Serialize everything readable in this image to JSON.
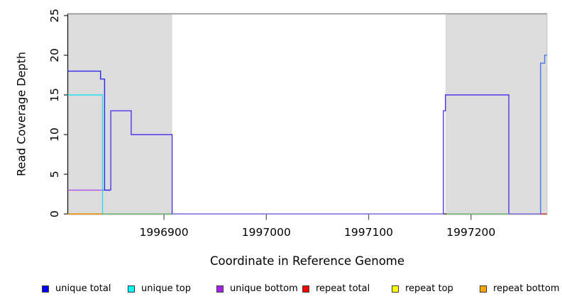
{
  "chart_data": {
    "type": "line",
    "subtype": "step-coverage",
    "title": "",
    "xlabel": "Coordinate in Reference Genome",
    "ylabel": "Read Coverage Depth",
    "xlim": [
      1996806,
      1997274
    ],
    "ylim": [
      0,
      25
    ],
    "x_ticks": [
      1996900,
      1997000,
      1997100,
      1997200
    ],
    "y_ticks": [
      0,
      5,
      10,
      15,
      20,
      25
    ],
    "grid": false,
    "legend_position": "bottom",
    "colors": {
      "background_shade": "#dcdcdc",
      "axis": "#1a1a1a",
      "top_border": "#8c8c8c",
      "unique_total": "#0000ff",
      "unique_top": "#00ffff",
      "unique_bottom": "#a020f0",
      "repeat_total": "#ff0000",
      "repeat_top": "#ffff00",
      "repeat_bottom": "#ffa500"
    },
    "shaded_regions": [
      {
        "x0": 1996806,
        "x1": 1996908
      },
      {
        "x0": 1997175,
        "x1": 1997274
      }
    ],
    "series": [
      {
        "name": "zero-line-middle",
        "color": "#8f7cf0",
        "points": [
          [
            1996908,
            0
          ],
          [
            1997173,
            0
          ]
        ]
      },
      {
        "name": "zero-line-right-gap",
        "color": "#8f7cf0",
        "points": [
          [
            1997237,
            0
          ],
          [
            1997268,
            0
          ]
        ]
      },
      {
        "name": "zero-line-green-left",
        "color": "#7fc87f",
        "points": [
          [
            1996840,
            0
          ],
          [
            1996908,
            0
          ]
        ]
      },
      {
        "name": "zero-line-green-right",
        "color": "#7fc87f",
        "points": [
          [
            1997176,
            0
          ],
          [
            1997237,
            0
          ]
        ]
      },
      {
        "name": "repeat-total-zero",
        "color": "#e04040",
        "points": [
          [
            1997268,
            0
          ],
          [
            1997274,
            0
          ]
        ]
      },
      {
        "name": "unique-bottom-level3",
        "color": "#a851f0",
        "points": [
          [
            1996806,
            3
          ],
          [
            1996848,
            3
          ]
        ]
      },
      {
        "name": "repeat-bottom-zero",
        "color": "#ff9900",
        "points": [
          [
            1996806,
            0
          ],
          [
            1996840,
            0
          ]
        ]
      },
      {
        "name": "unique-top-left",
        "color": "#2addee",
        "points": [
          [
            1996806,
            15
          ],
          [
            1996840,
            15
          ],
          [
            1996840,
            0
          ]
        ]
      },
      {
        "name": "unique-total-left",
        "color": "#2a2aee",
        "points": [
          [
            1996806,
            18
          ],
          [
            1996838,
            18
          ],
          [
            1996838,
            17
          ],
          [
            1996842,
            17
          ],
          [
            1996842,
            3
          ],
          [
            1996848,
            3
          ]
        ]
      },
      {
        "name": "unique-total-left-steps",
        "color": "#5533e8",
        "points": [
          [
            1996848,
            3
          ],
          [
            1996848,
            13
          ],
          [
            1996868,
            13
          ],
          [
            1996868,
            10
          ],
          [
            1996908,
            10
          ],
          [
            1996908,
            0
          ]
        ]
      },
      {
        "name": "unique-total-right-steps",
        "color": "#5533e8",
        "points": [
          [
            1997173,
            0
          ],
          [
            1997173,
            13
          ],
          [
            1997175,
            13
          ],
          [
            1997175,
            15
          ],
          [
            1997237,
            15
          ],
          [
            1997237,
            0
          ]
        ]
      },
      {
        "name": "unique-total-far-right",
        "color": "#4976e8",
        "points": [
          [
            1997268,
            0
          ],
          [
            1997268,
            19
          ],
          [
            1997272,
            19
          ],
          [
            1997272,
            20
          ],
          [
            1997274,
            20
          ]
        ]
      }
    ],
    "legend": [
      {
        "label": "unique total",
        "color": "#0000ff"
      },
      {
        "label": "unique top",
        "color": "#00ffff"
      },
      {
        "label": "unique bottom",
        "color": "#a020f0"
      },
      {
        "label": "repeat total",
        "color": "#ff0000"
      },
      {
        "label": "repeat top",
        "color": "#ffff00"
      },
      {
        "label": "repeat bottom",
        "color": "#ffa500"
      }
    ]
  }
}
